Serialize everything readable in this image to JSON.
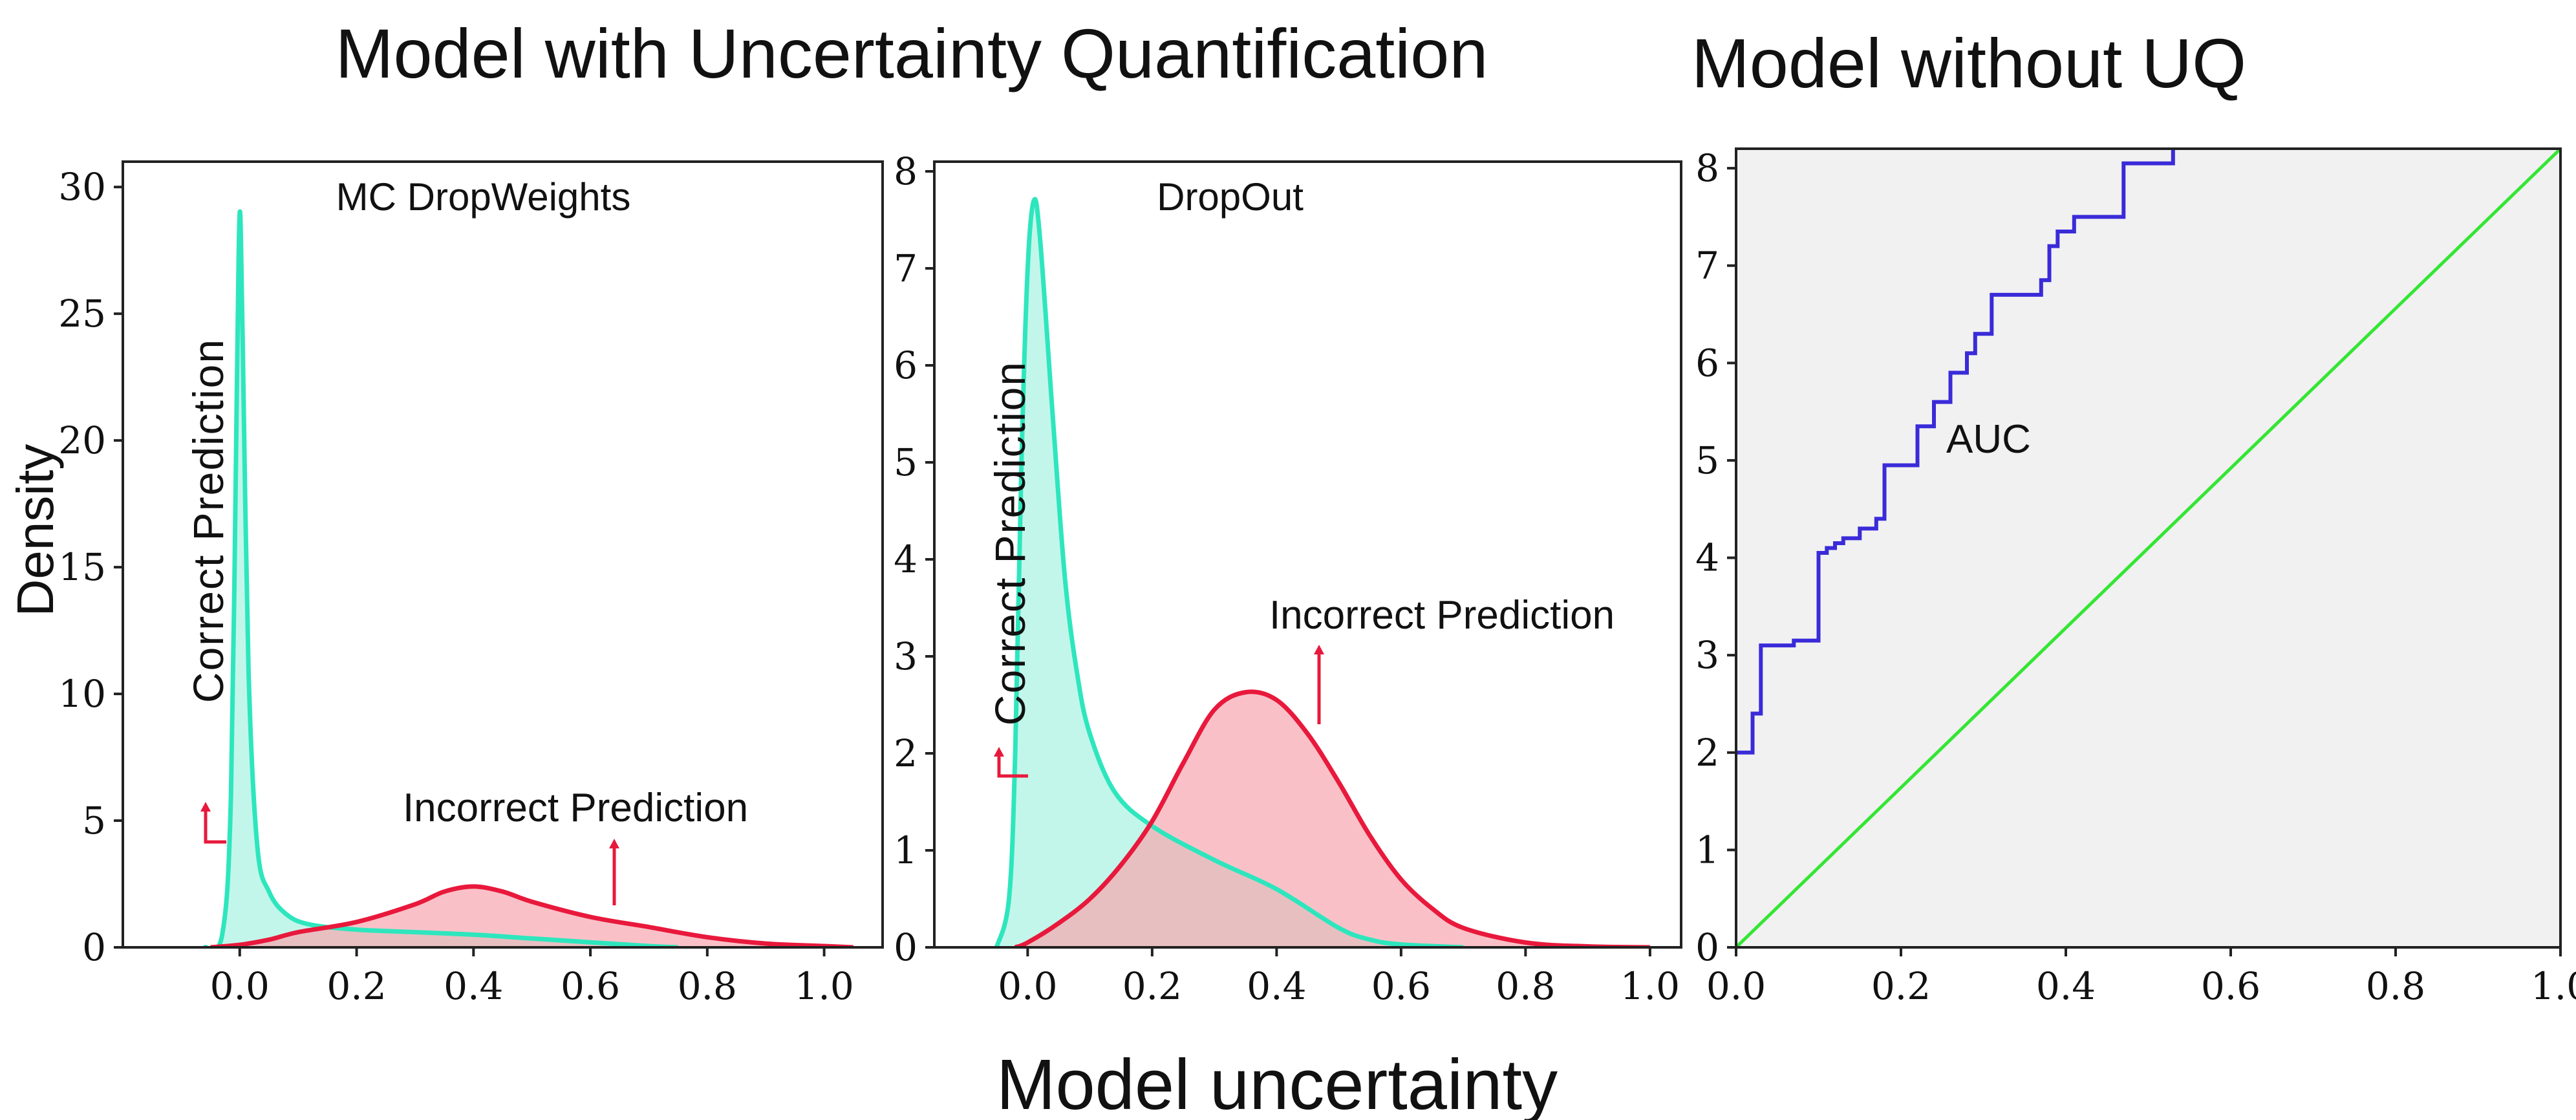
{
  "figure": {
    "title_uq": "Model with Uncertainty Quantification",
    "title_no_uq": "Model without UQ",
    "shared_xlabel": "Model uncertainty",
    "shared_ylabel": "Density"
  },
  "colors": {
    "correct_line": "#2ee6bd",
    "correct_fill": "#b8f5e6",
    "incorrect_line": "#e8193c",
    "incorrect_fill": "#f7a9b2",
    "roc_line": "#3a2bd9",
    "diagonal_line": "#33e633",
    "panel_bg": "#f1f1f1",
    "annotation_arrow": "#e8193c"
  },
  "chart_data": [
    {
      "type": "area",
      "title": "MC DropWeights",
      "xlabel": "Model uncertainty",
      "ylabel": "Density",
      "xlim": [
        -0.2,
        1.1
      ],
      "ylim": [
        0,
        31
      ],
      "xticks": [
        0.0,
        0.2,
        0.4,
        0.6,
        0.8,
        1.0
      ],
      "xtick_labels": [
        "0.0",
        "0.2",
        "0.4",
        "0.6",
        "0.8",
        "1.0"
      ],
      "yticks": [
        0,
        5,
        10,
        15,
        20,
        25,
        30
      ],
      "ytick_labels": [
        "0",
        "5",
        "10",
        "15",
        "20",
        "25",
        "30"
      ],
      "series": [
        {
          "name": "Correct Prediction",
          "x": [
            -0.06,
            -0.03,
            -0.015,
            -0.005,
            0.0,
            0.005,
            0.015,
            0.03,
            0.05,
            0.08,
            0.12,
            0.2,
            0.3,
            0.4,
            0.5,
            0.6,
            0.7,
            0.75
          ],
          "y": [
            0,
            0.5,
            6,
            22,
            29,
            24,
            11,
            4,
            2.2,
            1.3,
            0.9,
            0.7,
            0.6,
            0.5,
            0.35,
            0.2,
            0.05,
            0
          ]
        },
        {
          "name": "Incorrect Prediction",
          "x": [
            -0.05,
            0.0,
            0.05,
            0.1,
            0.2,
            0.3,
            0.35,
            0.4,
            0.45,
            0.5,
            0.6,
            0.7,
            0.8,
            0.9,
            1.0,
            1.05
          ],
          "y": [
            0,
            0.1,
            0.3,
            0.6,
            1.0,
            1.7,
            2.2,
            2.4,
            2.2,
            1.8,
            1.2,
            0.8,
            0.4,
            0.15,
            0.05,
            0
          ]
        }
      ],
      "annotations": [
        "Correct Prediction",
        "Incorrect Prediction"
      ]
    },
    {
      "type": "area",
      "title": "DropOut",
      "xlabel": "Model uncertainty",
      "ylabel": "",
      "xlim": [
        -0.15,
        1.05
      ],
      "ylim": [
        0,
        8.1
      ],
      "xticks": [
        0.0,
        0.2,
        0.4,
        0.6,
        0.8,
        1.0
      ],
      "xtick_labels": [
        "0.0",
        "0.2",
        "0.4",
        "0.6",
        "0.8",
        "1.0"
      ],
      "yticks": [
        0,
        1,
        2,
        3,
        4,
        5,
        6,
        7,
        8
      ],
      "ytick_labels": [
        "0",
        "1",
        "2",
        "3",
        "4",
        "5",
        "6",
        "7",
        "8"
      ],
      "series": [
        {
          "name": "Correct Prediction",
          "x": [
            -0.05,
            -0.03,
            -0.02,
            -0.01,
            0.0,
            0.01,
            0.02,
            0.04,
            0.06,
            0.08,
            0.1,
            0.14,
            0.2,
            0.3,
            0.4,
            0.5,
            0.55,
            0.6,
            0.7
          ],
          "y": [
            0,
            0.5,
            2.0,
            5.0,
            7.0,
            7.7,
            7.3,
            5.5,
            3.8,
            2.8,
            2.2,
            1.6,
            1.25,
            0.9,
            0.6,
            0.2,
            0.08,
            0.03,
            0
          ]
        },
        {
          "name": "Incorrect Prediction",
          "x": [
            -0.02,
            0.0,
            0.05,
            0.1,
            0.15,
            0.2,
            0.25,
            0.3,
            0.35,
            0.4,
            0.45,
            0.5,
            0.55,
            0.6,
            0.65,
            0.7,
            0.8,
            0.9,
            1.0
          ],
          "y": [
            0,
            0.05,
            0.25,
            0.5,
            0.85,
            1.3,
            1.9,
            2.45,
            2.63,
            2.55,
            2.2,
            1.7,
            1.15,
            0.7,
            0.4,
            0.2,
            0.05,
            0.01,
            0
          ]
        }
      ],
      "annotations": [
        "Correct Prediction",
        "Incorrect Prediction"
      ]
    },
    {
      "type": "line",
      "title": "Model without UQ",
      "xlabel": "",
      "ylabel": "",
      "xlim": [
        0,
        1.0
      ],
      "ylim": [
        0,
        8.2
      ],
      "grid": false,
      "xticks": [
        0.0,
        0.2,
        0.4,
        0.6,
        0.8,
        1.0
      ],
      "xtick_labels": [
        "0.0",
        "0.2",
        "0.4",
        "0.6",
        "0.8",
        "1.0"
      ],
      "yticks": [
        0,
        1,
        2,
        3,
        4,
        5,
        6,
        7,
        8
      ],
      "ytick_labels": [
        "0",
        "1",
        "2",
        "3",
        "4",
        "5",
        "6",
        "7",
        "8"
      ],
      "series": [
        {
          "name": "AUC",
          "step": true,
          "x": [
            0.0,
            0.01,
            0.02,
            0.03,
            0.07,
            0.08,
            0.1,
            0.11,
            0.12,
            0.13,
            0.15,
            0.17,
            0.18,
            0.22,
            0.23,
            0.24,
            0.25,
            0.26,
            0.28,
            0.29,
            0.31,
            0.36,
            0.37,
            0.38,
            0.39,
            0.41,
            0.46,
            0.47,
            0.5,
            0.52,
            0.53
          ],
          "y": [
            2.0,
            2.0,
            2.4,
            3.1,
            3.15,
            3.15,
            4.05,
            4.1,
            4.15,
            4.2,
            4.3,
            4.4,
            4.95,
            5.35,
            5.35,
            5.6,
            5.6,
            5.9,
            6.1,
            6.3,
            6.7,
            6.7,
            6.85,
            7.2,
            7.35,
            7.5,
            7.5,
            8.05,
            8.05,
            8.05,
            8.2
          ]
        },
        {
          "name": "Diagonal",
          "x": [
            0.0,
            1.0
          ],
          "y": [
            0.0,
            8.2
          ]
        }
      ],
      "annotations": [
        "AUC"
      ]
    }
  ]
}
